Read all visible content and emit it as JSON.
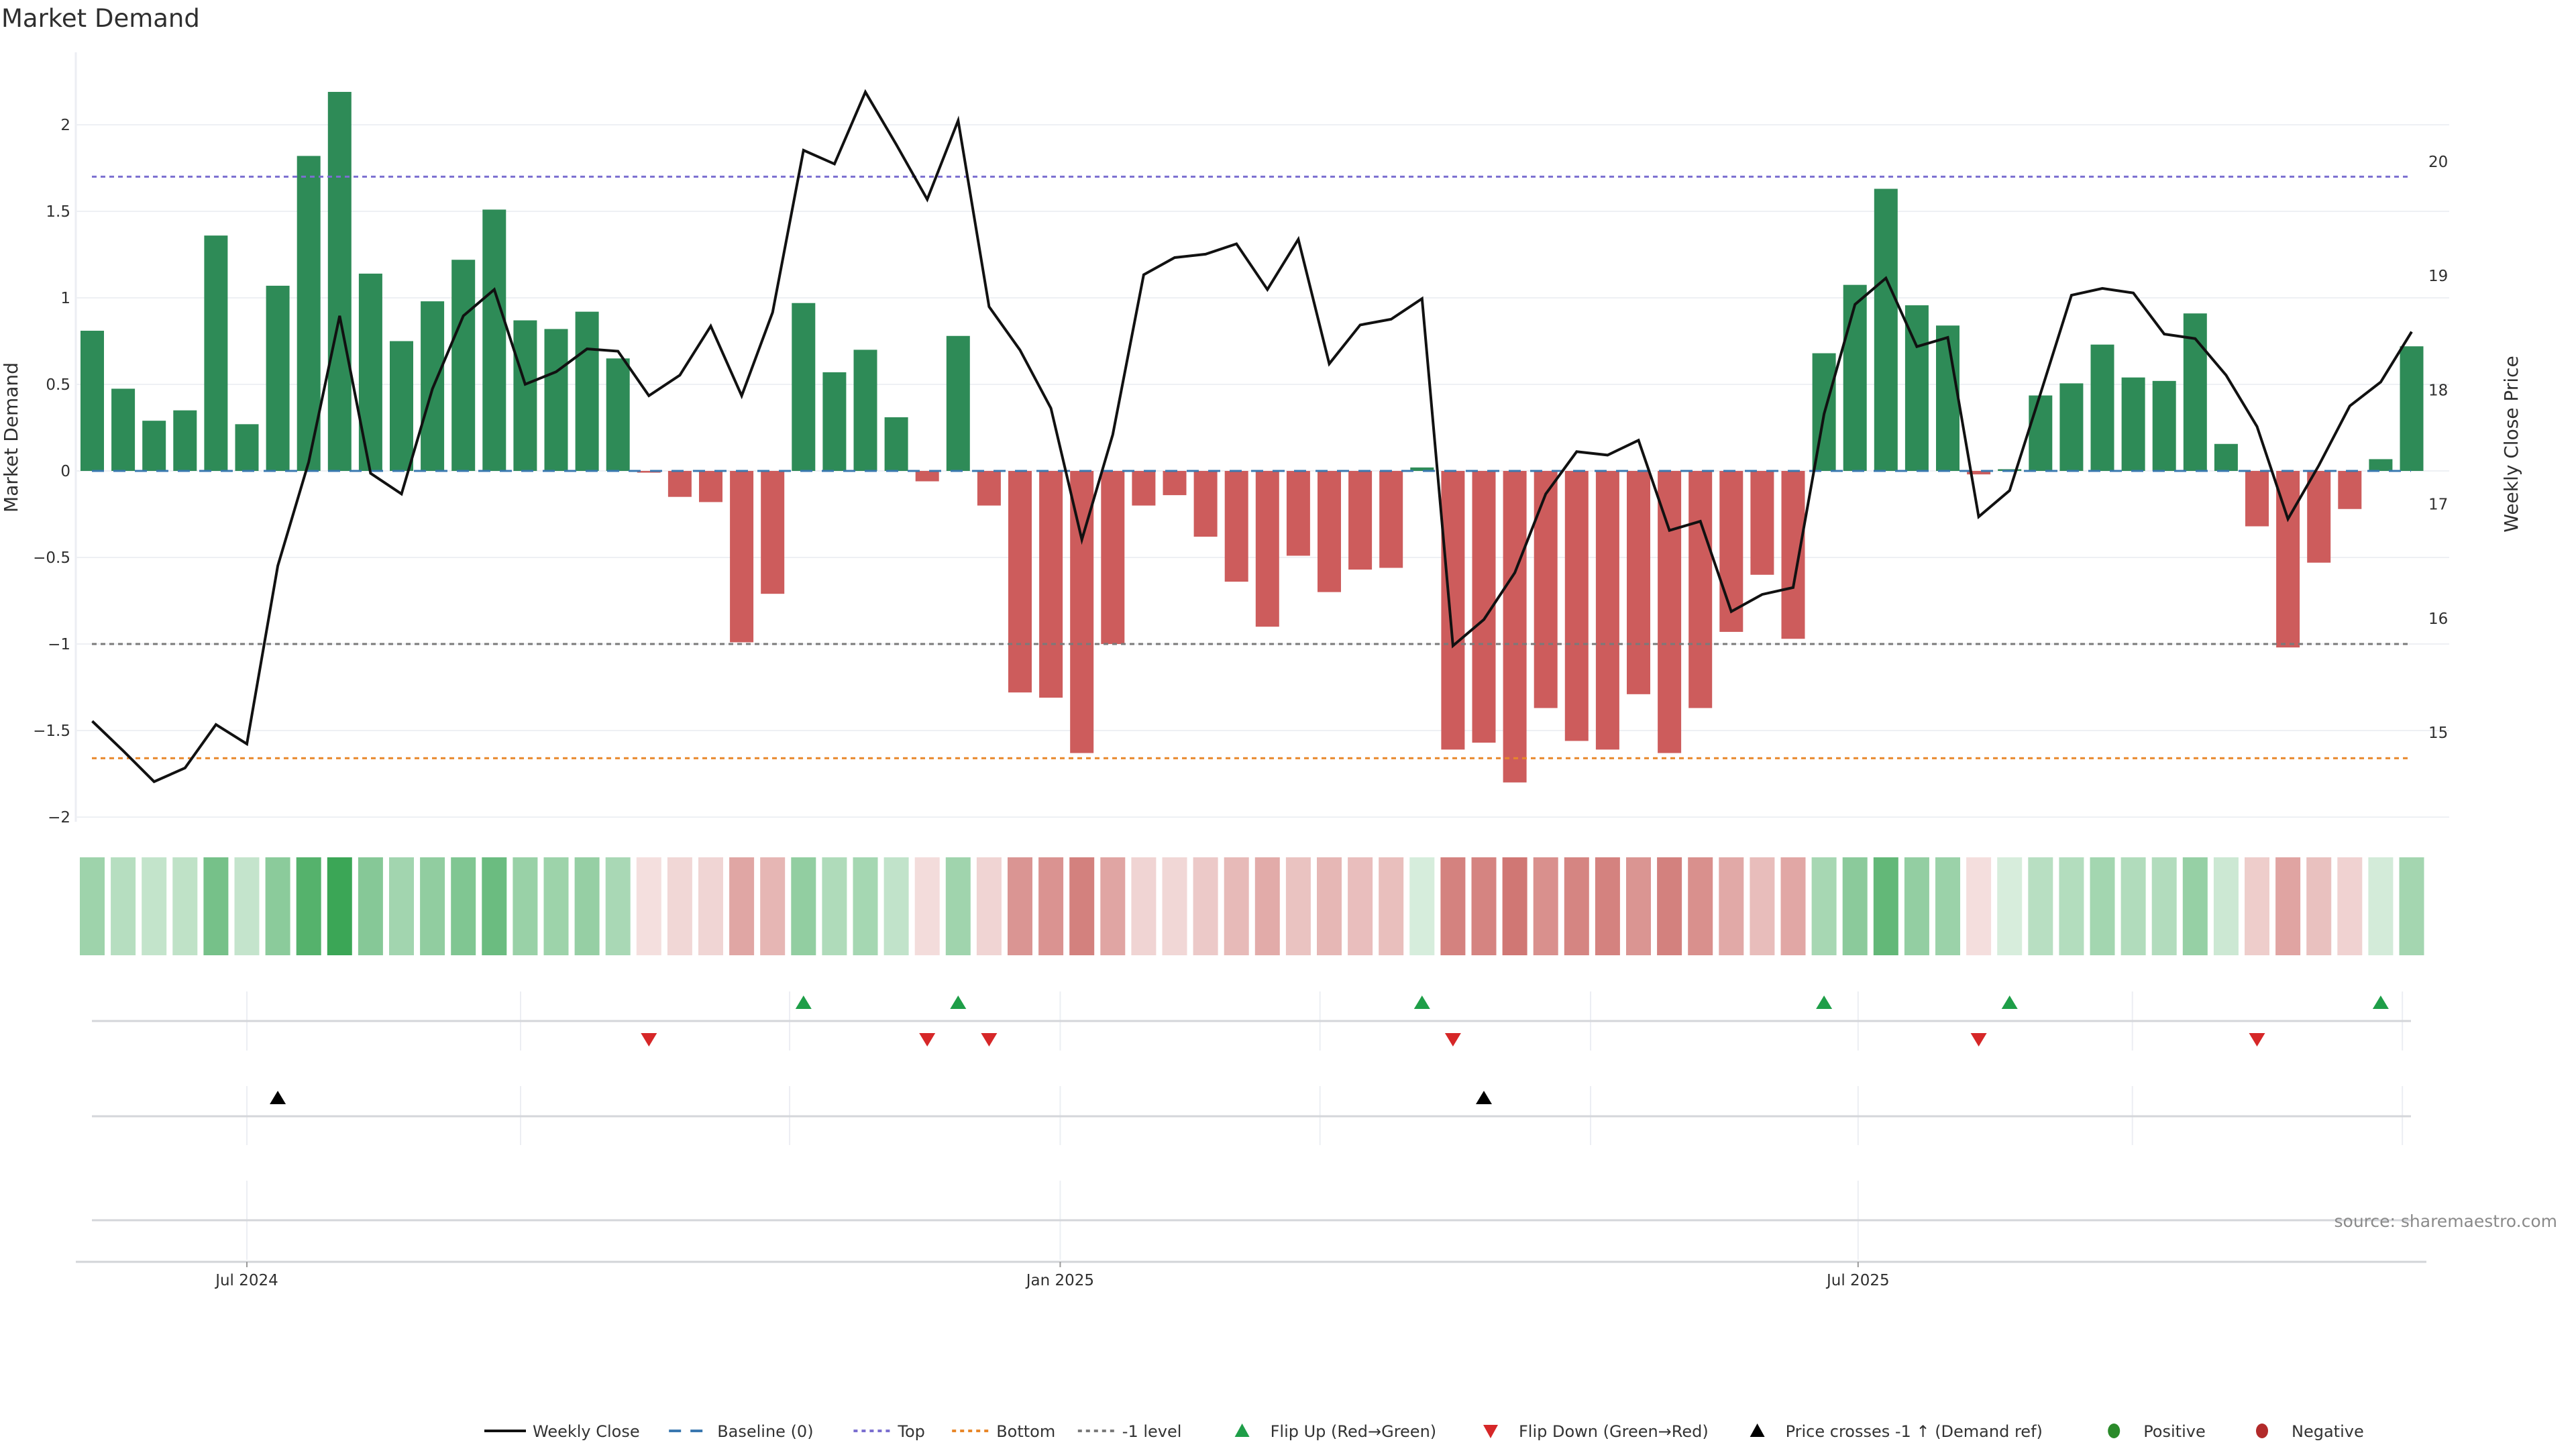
{
  "chart_data": {
    "type": "bar+line",
    "title": "Market Demand",
    "ylabel_left": "Market Demand",
    "ylabel_right": "Weekly Close Price",
    "ylim_left": [
      -2.2,
      2.4
    ],
    "ylim_right": [
      14.2,
      20.8
    ],
    "yticks_left": [
      {
        "value": 2,
        "label": "2"
      },
      {
        "value": 1.5,
        "label": "1.5"
      },
      {
        "value": 1,
        "label": "1"
      },
      {
        "value": 0.5,
        "label": "0.5"
      },
      {
        "value": 0,
        "label": "0"
      },
      {
        "value": -0.5,
        "label": "−0.5"
      },
      {
        "value": -1,
        "label": "−1"
      },
      {
        "value": -1.5,
        "label": "−1.5"
      },
      {
        "value": -2,
        "label": "−2"
      }
    ],
    "yticks_right": [
      {
        "value": 20,
        "label": "20"
      },
      {
        "value": 19,
        "label": "19"
      },
      {
        "value": 18,
        "label": "18"
      },
      {
        "value": 17,
        "label": "17"
      },
      {
        "value": 16,
        "label": "16"
      },
      {
        "value": 15,
        "label": "15"
      }
    ],
    "xticks": [
      {
        "week_index": 5,
        "label": "Jul 2024"
      },
      {
        "week_index": 31.3,
        "label": "Jan 2025"
      },
      {
        "week_index": 57.1,
        "label": "Jul 2025"
      }
    ],
    "x_minor_grid_week_index": [
      5,
      13.85,
      22.55,
      31.3,
      39.7,
      48.45,
      57.1,
      65.97,
      74.7
    ],
    "grid": true,
    "levels": {
      "baseline": 0,
      "top": 1.7,
      "bottom": -1.66,
      "minus_one": -1
    },
    "demand": [
      0.81,
      0.475,
      0.29,
      0.35,
      1.36,
      0.27,
      1.07,
      1.82,
      2.19,
      1.14,
      0.75,
      0.98,
      1.22,
      1.51,
      0.87,
      0.82,
      0.92,
      0.65,
      -0.01,
      -0.15,
      -0.18,
      -0.99,
      -0.71,
      0.97,
      0.57,
      0.7,
      0.31,
      -0.06,
      0.78,
      -0.2,
      -1.28,
      -1.31,
      -1.63,
      -1.0,
      -0.2,
      -0.14,
      -0.38,
      -0.64,
      -0.9,
      -0.49,
      -0.7,
      -0.57,
      -0.56,
      0.02,
      -1.61,
      -1.57,
      -1.8,
      -1.37,
      -1.56,
      -1.61,
      -1.29,
      -1.63,
      -1.37,
      -0.93,
      -0.6,
      -0.97,
      0.68,
      1.075,
      1.63,
      0.957,
      0.84,
      -0.02,
      0.01,
      0.436,
      0.506,
      0.73,
      0.54,
      0.52,
      0.91,
      0.156,
      -0.32,
      -1.02,
      -0.53,
      -0.22,
      0.068,
      0.72
    ],
    "weekly_close": [
      15.1,
      14.84,
      14.57,
      14.69,
      15.07,
      14.9,
      16.46,
      17.37,
      18.65,
      17.27,
      17.09,
      18.01,
      18.65,
      18.88,
      18.05,
      18.16,
      18.36,
      18.34,
      17.95,
      18.13,
      18.56,
      17.95,
      18.68,
      20.1,
      19.98,
      20.61,
      20.15,
      19.67,
      20.36,
      18.73,
      18.35,
      17.84,
      16.69,
      17.61,
      19.01,
      19.16,
      19.19,
      19.28,
      18.88,
      19.32,
      18.23,
      18.57,
      18.62,
      18.8,
      15.76,
      15.99,
      16.4,
      17.09,
      17.46,
      17.43,
      17.56,
      16.77,
      16.85,
      16.06,
      16.21,
      16.27,
      17.79,
      18.75,
      18.98,
      18.38,
      18.46,
      16.89,
      17.12,
      17.97,
      18.83,
      18.89,
      18.85,
      18.49,
      18.45,
      18.13,
      17.68,
      16.87,
      17.34,
      17.86,
      18.07,
      18.51
    ],
    "flip_up_week_index": [
      23,
      28,
      43,
      56,
      62,
      74
    ],
    "flip_down_week_index": [
      18,
      27,
      29,
      44,
      61,
      70
    ],
    "price_cross_week_index": [
      6,
      45
    ],
    "legend": [
      {
        "label": "Weekly Close",
        "style": "line",
        "color": "#111111"
      },
      {
        "label": "Baseline (0)",
        "style": "dash",
        "color": "#3a78b0"
      },
      {
        "label": "Top",
        "style": "dot",
        "color": "#7b6fd0"
      },
      {
        "label": "Bottom",
        "style": "dot",
        "color": "#e8872a"
      },
      {
        "label": "-1 level",
        "style": "dot",
        "color": "#7a7a7a"
      },
      {
        "label": "Flip Up (Red→Green)",
        "style": "triangle-up",
        "color": "#1e9e48"
      },
      {
        "label": "Flip Down (Green→Red)",
        "style": "triangle-down",
        "color": "#d62728"
      },
      {
        "label": "Price crosses -1 ↑ (Demand ref)",
        "style": "triangle-up",
        "color": "#000000"
      },
      {
        "label": "Positive",
        "style": "circle",
        "color": "#2a8a2a"
      },
      {
        "label": "Negative",
        "style": "circle",
        "color": "#b22a2a"
      }
    ],
    "legend_position": "bottom-center",
    "colors": {
      "positive_bar": "#2e8b57",
      "negative_bar": "#cd5c5c",
      "heat_positive": "#3aa655",
      "heat_negative": "#c8605c",
      "price_line": "#111111",
      "grid": "#eef0f4"
    }
  },
  "source": "source: sharemaestro.com"
}
